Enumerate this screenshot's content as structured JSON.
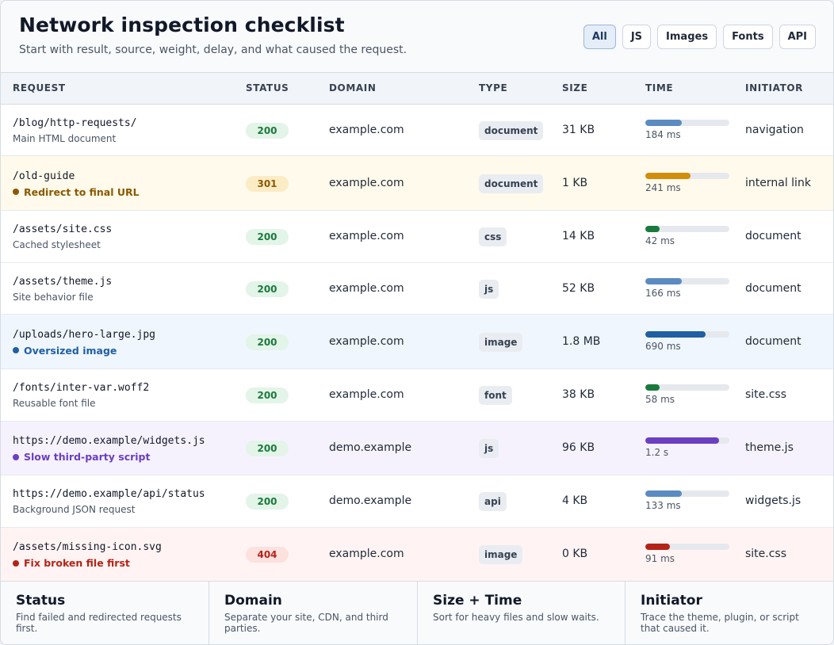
{
  "header": {
    "title": "Network inspection checklist",
    "subtitle": "Start with result, source, weight, delay, and what caused the request."
  },
  "filters": [
    {
      "label": "All",
      "active": true
    },
    {
      "label": "JS",
      "active": false
    },
    {
      "label": "Images",
      "active": false
    },
    {
      "label": "Fonts",
      "active": false
    },
    {
      "label": "API",
      "active": false
    }
  ],
  "columns": [
    "REQUEST",
    "STATUS",
    "DOMAIN",
    "TYPE",
    "SIZE",
    "TIME",
    "INITIATOR"
  ],
  "rows": [
    {
      "path": "/blog/http-requests/",
      "note": "Main HTML document",
      "flag": false,
      "status": "200",
      "domain": "example.com",
      "type": "document",
      "size": "31 KB",
      "time": "184 ms",
      "time_fraction": 0.43,
      "initiator": "navigation",
      "highlight": "none",
      "status_kind": "ok",
      "bar_color": "#5b8bc1"
    },
    {
      "path": "/old-guide",
      "note": "Redirect to final URL",
      "flag": true,
      "flag_color": "#8a5a00",
      "status": "301",
      "domain": "example.com",
      "type": "document",
      "size": "1 KB",
      "time": "241 ms",
      "time_fraction": 0.54,
      "initiator": "internal link",
      "highlight": "warn",
      "status_kind": "redirect",
      "bar_color": "#d18d0c"
    },
    {
      "path": "/assets/site.css",
      "note": "Cached stylesheet",
      "flag": false,
      "status": "200",
      "domain": "example.com",
      "type": "css",
      "size": "14 KB",
      "time": "42 ms",
      "time_fraction": 0.17,
      "initiator": "document",
      "highlight": "none",
      "status_kind": "ok",
      "bar_color": "#1a7a3c"
    },
    {
      "path": "/assets/theme.js",
      "note": "Site behavior file",
      "flag": false,
      "status": "200",
      "domain": "example.com",
      "type": "js",
      "size": "52 KB",
      "time": "166 ms",
      "time_fraction": 0.43,
      "initiator": "document",
      "highlight": "none",
      "status_kind": "ok",
      "bar_color": "#5b8bc1"
    },
    {
      "path": "/uploads/hero-large.jpg",
      "note": "Oversized image",
      "flag": true,
      "flag_color": "#1f5fa3",
      "status": "200",
      "domain": "example.com",
      "type": "image",
      "size": "1.8 MB",
      "time": "690 ms",
      "time_fraction": 0.72,
      "initiator": "document",
      "highlight": "info",
      "status_kind": "ok",
      "bar_color": "#1f5fa3"
    },
    {
      "path": "/fonts/inter-var.woff2",
      "note": "Reusable font file",
      "flag": false,
      "status": "200",
      "domain": "example.com",
      "type": "font",
      "size": "38 KB",
      "time": "58 ms",
      "time_fraction": 0.17,
      "initiator": "site.css",
      "highlight": "none",
      "status_kind": "ok",
      "bar_color": "#1a7a3c"
    },
    {
      "path": "https://demo.example/widgets.js",
      "note": "Slow third-party script",
      "flag": true,
      "flag_color": "#6a3fc2",
      "status": "200",
      "domain": "demo.example",
      "type": "js",
      "size": "96 KB",
      "time": "1.2 s",
      "time_fraction": 0.88,
      "initiator": "theme.js",
      "highlight": "purple",
      "status_kind": "ok",
      "bar_color": "#6a3fc2"
    },
    {
      "path": "https://demo.example/api/status",
      "note": "Background JSON request",
      "flag": false,
      "status": "200",
      "domain": "demo.example",
      "type": "api",
      "size": "4 KB",
      "time": "133 ms",
      "time_fraction": 0.43,
      "initiator": "widgets.js",
      "highlight": "none",
      "status_kind": "ok",
      "bar_color": "#5b8bc1"
    },
    {
      "path": "/assets/missing-icon.svg",
      "note": "Fix broken file first",
      "flag": true,
      "flag_color": "#b42318",
      "status": "404",
      "domain": "example.com",
      "type": "image",
      "size": "0 KB",
      "time": "91 ms",
      "time_fraction": 0.29,
      "initiator": "site.css",
      "highlight": "danger",
      "status_kind": "error",
      "bar_color": "#b42318"
    }
  ],
  "tips": [
    {
      "title": "Status",
      "text": "Find failed and redirected requests first."
    },
    {
      "title": "Domain",
      "text": "Separate your site, CDN, and third parties."
    },
    {
      "title": "Size + Time",
      "text": "Sort for heavy files and slow waits."
    },
    {
      "title": "Initiator",
      "text": "Trace the theme, plugin, or script that caused it."
    }
  ]
}
